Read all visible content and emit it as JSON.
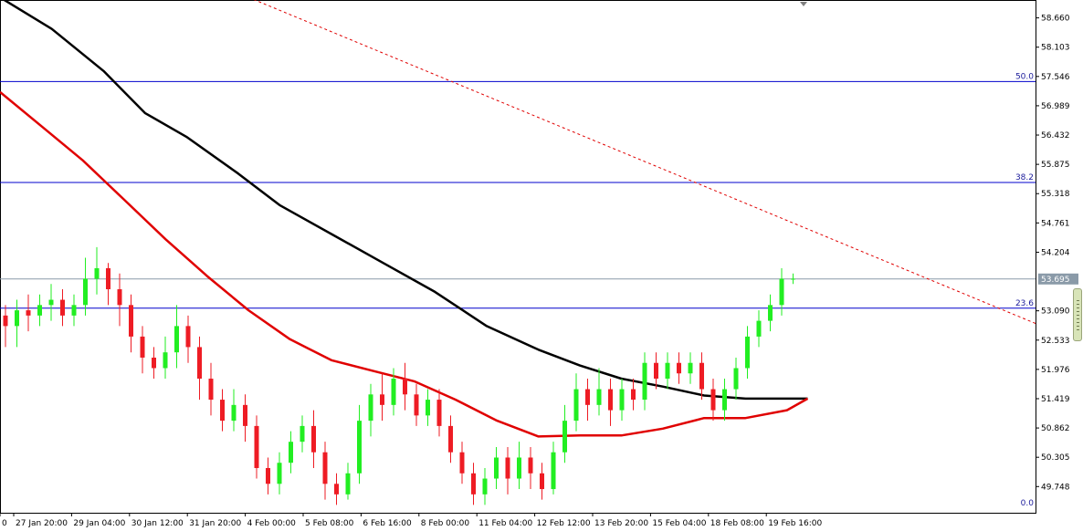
{
  "chart_data": {
    "type": "candlestick",
    "price_axis": {
      "ticks": [
        "58.660",
        "58.103",
        "57.546",
        "56.989",
        "56.432",
        "55.875",
        "55.318",
        "54.761",
        "54.204",
        "53.090",
        "52.533",
        "51.976",
        "51.419",
        "50.862",
        "50.305",
        "49.748"
      ],
      "range": [
        49.25,
        59.0
      ]
    },
    "time_axis": {
      "labels": [
        "0",
        "27 Jan 20:00",
        "29 Jan 04:00",
        "30 Jan 12:00",
        "31 Jan 20:00",
        "4 Feb 00:00",
        "5 Feb 08:00",
        "6 Feb 16:00",
        "8 Feb 00:00",
        "11 Feb 04:00",
        "12 Feb 12:00",
        "13 Feb 20:00",
        "15 Feb 04:00",
        "18 Feb 08:00",
        "19 Feb 16:00"
      ]
    },
    "current_price": {
      "value": 53.695,
      "label": "53.695"
    },
    "fib_levels": [
      {
        "label": "50.0",
        "value": 57.45
      },
      {
        "label": "38.2",
        "value": 55.53
      },
      {
        "label": "23.6",
        "value": 53.14
      },
      {
        "label": "0.0",
        "value": 49.25
      }
    ],
    "trendline": {
      "from": [
        0.24,
        59.05
      ],
      "to": [
        1.0,
        52.85
      ]
    },
    "moving_averages": [
      {
        "color": "#000000",
        "points": [
          [
            0.0,
            59.05
          ],
          [
            0.05,
            58.45
          ],
          [
            0.1,
            57.65
          ],
          [
            0.14,
            56.85
          ],
          [
            0.18,
            56.4
          ],
          [
            0.23,
            55.7
          ],
          [
            0.27,
            55.1
          ],
          [
            0.32,
            54.55
          ],
          [
            0.37,
            54.0
          ],
          [
            0.42,
            53.45
          ],
          [
            0.47,
            52.8
          ],
          [
            0.52,
            52.35
          ],
          [
            0.56,
            52.05
          ],
          [
            0.6,
            51.8
          ],
          [
            0.64,
            51.65
          ],
          [
            0.68,
            51.48
          ],
          [
            0.72,
            51.42
          ],
          [
            0.76,
            51.42
          ],
          [
            0.78,
            51.42
          ]
        ]
      },
      {
        "color": "#e00000",
        "points": [
          [
            0.0,
            57.25
          ],
          [
            0.04,
            56.6
          ],
          [
            0.08,
            55.95
          ],
          [
            0.12,
            55.2
          ],
          [
            0.16,
            54.45
          ],
          [
            0.2,
            53.75
          ],
          [
            0.24,
            53.1
          ],
          [
            0.28,
            52.55
          ],
          [
            0.32,
            52.15
          ],
          [
            0.36,
            51.95
          ],
          [
            0.4,
            51.75
          ],
          [
            0.44,
            51.4
          ],
          [
            0.48,
            51.0
          ],
          [
            0.52,
            50.7
          ],
          [
            0.56,
            50.72
          ],
          [
            0.6,
            50.72
          ],
          [
            0.64,
            50.85
          ],
          [
            0.68,
            51.05
          ],
          [
            0.72,
            51.05
          ],
          [
            0.76,
            51.2
          ],
          [
            0.78,
            51.42
          ]
        ]
      }
    ],
    "candles": [
      [
        53.0,
        52.8,
        53.2,
        52.4
      ],
      [
        52.8,
        53.1,
        53.3,
        52.4
      ],
      [
        53.1,
        53.0,
        53.4,
        52.7
      ],
      [
        53.0,
        53.2,
        53.4,
        52.8
      ],
      [
        53.2,
        53.3,
        53.6,
        52.9
      ],
      [
        53.3,
        53.0,
        53.5,
        52.8
      ],
      [
        53.0,
        53.2,
        53.4,
        52.8
      ],
      [
        53.2,
        53.7,
        54.1,
        53.0
      ],
      [
        53.7,
        53.9,
        54.3,
        53.4
      ],
      [
        53.9,
        53.5,
        54.0,
        53.2
      ],
      [
        53.5,
        53.2,
        53.8,
        52.8
      ],
      [
        53.2,
        52.6,
        53.4,
        52.3
      ],
      [
        52.6,
        52.2,
        52.8,
        51.9
      ],
      [
        52.2,
        52.0,
        52.4,
        51.8
      ],
      [
        52.0,
        52.3,
        52.6,
        51.8
      ],
      [
        52.3,
        52.8,
        53.2,
        52.0
      ],
      [
        52.8,
        52.4,
        53.0,
        52.1
      ],
      [
        52.4,
        51.8,
        52.6,
        51.4
      ],
      [
        51.8,
        51.4,
        52.1,
        51.1
      ],
      [
        51.4,
        51.0,
        51.6,
        50.8
      ],
      [
        51.0,
        51.3,
        51.6,
        50.8
      ],
      [
        51.3,
        50.9,
        51.5,
        50.6
      ],
      [
        50.9,
        50.1,
        51.1,
        49.9
      ],
      [
        50.1,
        49.8,
        50.3,
        49.6
      ],
      [
        49.8,
        50.2,
        50.4,
        49.6
      ],
      [
        50.2,
        50.6,
        50.8,
        50.0
      ],
      [
        50.6,
        50.9,
        51.1,
        50.4
      ],
      [
        50.9,
        50.4,
        51.2,
        50.1
      ],
      [
        50.4,
        49.8,
        50.6,
        49.5
      ],
      [
        49.8,
        49.6,
        50.0,
        49.4
      ],
      [
        49.6,
        50.0,
        50.2,
        49.5
      ],
      [
        50.0,
        51.0,
        51.3,
        49.8
      ],
      [
        51.0,
        51.5,
        51.7,
        50.7
      ],
      [
        51.5,
        51.3,
        51.9,
        51.0
      ],
      [
        51.3,
        51.8,
        52.0,
        51.1
      ],
      [
        51.8,
        51.5,
        52.1,
        51.2
      ],
      [
        51.5,
        51.1,
        51.7,
        50.9
      ],
      [
        51.1,
        51.4,
        51.6,
        50.9
      ],
      [
        51.4,
        50.9,
        51.6,
        50.7
      ],
      [
        50.9,
        50.4,
        51.1,
        50.2
      ],
      [
        50.4,
        50.0,
        50.6,
        49.8
      ],
      [
        50.0,
        49.6,
        50.2,
        49.4
      ],
      [
        49.6,
        49.9,
        50.1,
        49.4
      ],
      [
        49.9,
        50.3,
        50.5,
        49.7
      ],
      [
        50.3,
        49.9,
        50.5,
        49.6
      ],
      [
        49.9,
        50.3,
        50.6,
        49.7
      ],
      [
        50.3,
        50.0,
        50.5,
        49.7
      ],
      [
        50.0,
        49.7,
        50.2,
        49.5
      ],
      [
        49.7,
        50.4,
        50.6,
        49.6
      ],
      [
        50.4,
        51.0,
        51.3,
        50.2
      ],
      [
        51.0,
        51.6,
        51.9,
        50.8
      ],
      [
        51.6,
        51.3,
        51.8,
        51.0
      ],
      [
        51.3,
        51.6,
        52.0,
        51.1
      ],
      [
        51.6,
        51.2,
        51.8,
        50.9
      ],
      [
        51.2,
        51.6,
        51.8,
        51.0
      ],
      [
        51.6,
        51.4,
        51.8,
        51.2
      ],
      [
        51.4,
        52.1,
        52.3,
        51.2
      ],
      [
        52.1,
        51.8,
        52.3,
        51.6
      ],
      [
        51.8,
        52.1,
        52.3,
        51.6
      ],
      [
        52.1,
        51.9,
        52.3,
        51.7
      ],
      [
        51.9,
        52.1,
        52.3,
        51.7
      ],
      [
        52.1,
        51.6,
        52.3,
        51.4
      ],
      [
        51.6,
        51.2,
        51.8,
        51.0
      ],
      [
        51.2,
        51.6,
        51.8,
        51.0
      ],
      [
        51.6,
        52.0,
        52.2,
        51.4
      ],
      [
        52.0,
        52.6,
        52.8,
        51.8
      ],
      [
        52.6,
        52.9,
        53.1,
        52.4
      ],
      [
        52.9,
        53.2,
        53.4,
        52.7
      ],
      [
        53.2,
        53.7,
        53.9,
        53.0
      ],
      [
        53.7,
        53.7,
        53.8,
        53.6
      ]
    ]
  },
  "window": {
    "accent": "#0000cc",
    "up_color": "#22ee22",
    "down_color": "#ee1c24",
    "grid_color": "#000000",
    "background": "#ffffff"
  }
}
